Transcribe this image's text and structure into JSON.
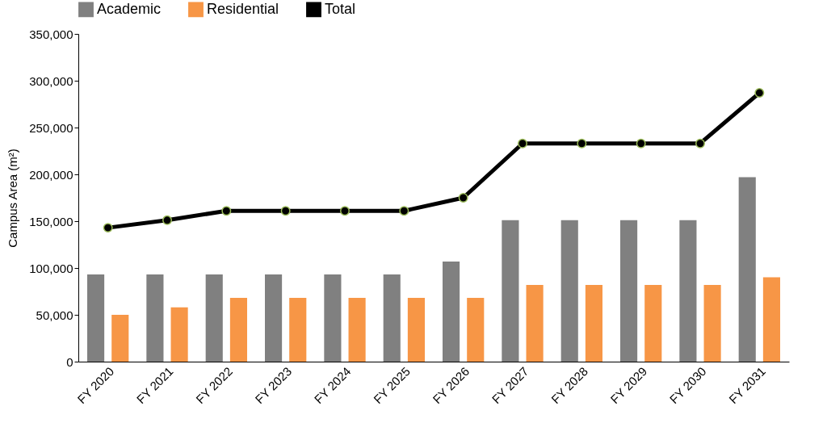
{
  "chart_data": {
    "type": "bar",
    "ylabel": "Campus Area (m²)",
    "categories": [
      "FY 2020",
      "FY 2021",
      "FY 2022",
      "FY 2023",
      "FY 2024",
      "FY 2025",
      "FY 2026",
      "FY 2027",
      "FY 2028",
      "FY 2029",
      "FY 2030",
      "FY 2031"
    ],
    "series": [
      {
        "name": "Academic",
        "color": "#808080",
        "values": [
          93000,
          93000,
          93000,
          93000,
          93000,
          93000,
          107000,
          151000,
          151000,
          151000,
          151000,
          197000
        ]
      },
      {
        "name": "Residential",
        "color": "#f79646",
        "values": [
          50000,
          58000,
          68000,
          68000,
          68000,
          68000,
          68000,
          82000,
          82000,
          82000,
          82000,
          90000
        ]
      },
      {
        "name": "Total",
        "type": "line",
        "color": "#000000",
        "marker": "circle",
        "values": [
          143000,
          151000,
          161000,
          161000,
          161000,
          161000,
          175000,
          233000,
          233000,
          233000,
          233000,
          287000
        ]
      }
    ],
    "ylim": [
      0,
      350000
    ],
    "yticks": [
      0,
      {
        "value": 50000,
        "label": "50,000"
      },
      {
        "value": 100000,
        "label": "100,000"
      },
      {
        "value": 150000,
        "label": "150,000"
      },
      {
        "value": 200000,
        "label": "200,000"
      },
      {
        "value": 250000,
        "label": "250,000"
      },
      {
        "value": 300000,
        "label": "300,000"
      },
      {
        "value": 350000,
        "label": "350,000"
      }
    ],
    "grid": false,
    "legend": "top"
  }
}
